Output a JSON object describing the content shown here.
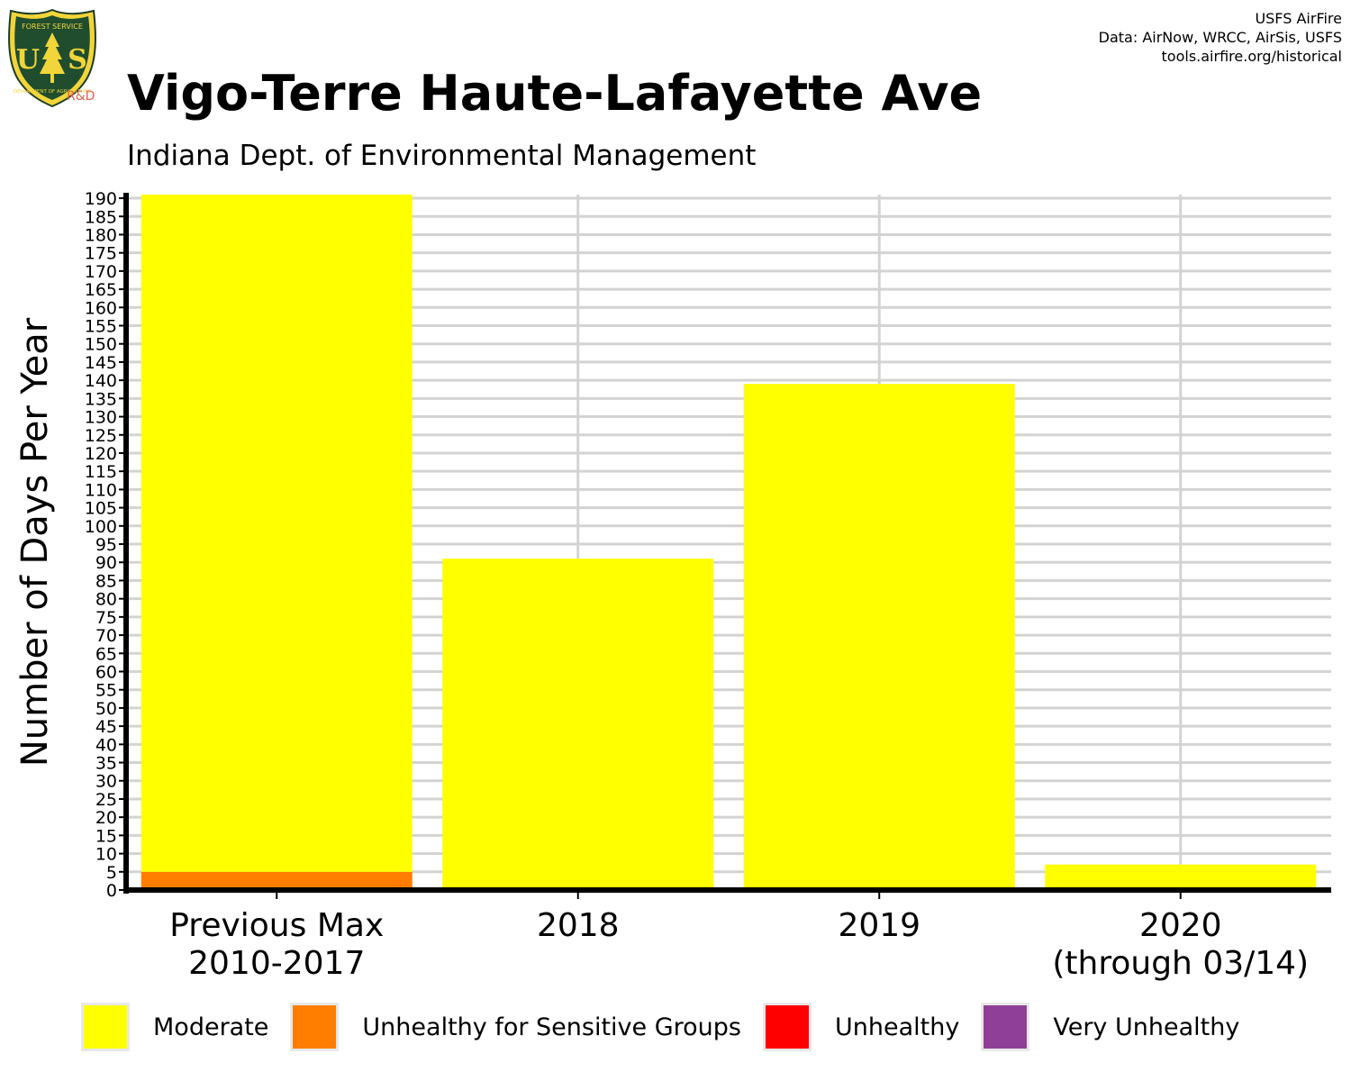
{
  "header": {
    "title": "Vigo-Terre Haute-Lafayette Ave",
    "subtitle": "Indiana Dept. of Environmental Management",
    "credits": [
      "USFS AirFire",
      "Data: AirNow, WRCC, AirSis, USFS",
      "tools.airfire.org/historical"
    ],
    "logo": {
      "top_text": "FOREST SERVICE",
      "letters": "US",
      "bottom_text": "DEPARTMENT OF AGRICULTURE",
      "badge": "R&D"
    }
  },
  "colors": {
    "moderate": "#FFFF00",
    "usg": "#FF7E00",
    "unhealthy": "#FF0000",
    "very_unhealthy": "#8F3F97",
    "grid": "#d3d3d3",
    "axis": "#000000"
  },
  "chart_data": {
    "type": "bar",
    "stacked": true,
    "ylabel": "Number of Days Per Year",
    "xlabel": "",
    "ylim": [
      0,
      191
    ],
    "y_tick_step": 5,
    "categories": [
      "Previous Max\n2010-2017",
      "2018",
      "2019",
      "2020\n(through 03/14)"
    ],
    "series": [
      {
        "name": "Unhealthy for Sensitive Groups",
        "color_key": "usg",
        "values": [
          5,
          0,
          0,
          0
        ]
      },
      {
        "name": "Moderate",
        "color_key": "moderate",
        "values": [
          186,
          91,
          139,
          7
        ]
      }
    ],
    "grid": true,
    "legend_position": "bottom"
  },
  "legend": [
    {
      "label": "Moderate",
      "color_key": "moderate"
    },
    {
      "label": "Unhealthy for Sensitive Groups",
      "color_key": "usg"
    },
    {
      "label": "Unhealthy",
      "color_key": "unhealthy"
    },
    {
      "label": "Very Unhealthy",
      "color_key": "very_unhealthy"
    }
  ]
}
